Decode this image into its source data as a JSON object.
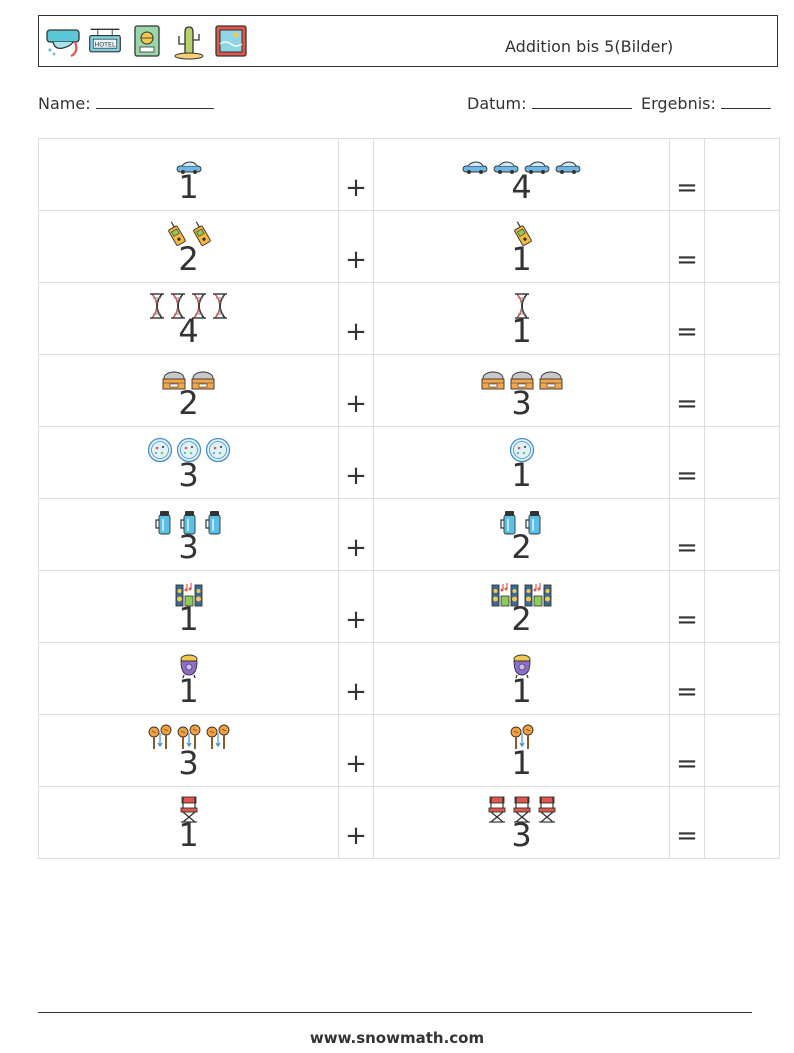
{
  "header": {
    "title": "Addition bis 5(Bilder)",
    "icons": [
      "snorkel-mask-icon",
      "hotel-sign-icon",
      "passport-icon",
      "cactus-icon",
      "postcard-icon"
    ]
  },
  "meta": {
    "name_label": "Name:",
    "datum_label": "Datum:",
    "ergebnis_label": "Ergebnis:"
  },
  "operators": {
    "plus": "+",
    "equals": "="
  },
  "rows": [
    {
      "a": 1,
      "b": 4,
      "a_icon": "car-icon",
      "b_icon": "car-icon"
    },
    {
      "a": 2,
      "b": 1,
      "a_icon": "walkie-talkie-icon",
      "b_icon": "walkie-talkie-icon"
    },
    {
      "a": 4,
      "b": 1,
      "a_icon": "dna-icon",
      "b_icon": "dna-icon"
    },
    {
      "a": 2,
      "b": 3,
      "a_icon": "basket-icon",
      "b_icon": "basket-icon"
    },
    {
      "a": 3,
      "b": 1,
      "a_icon": "petri-dish-icon",
      "b_icon": "petri-dish-icon"
    },
    {
      "a": 3,
      "b": 2,
      "a_icon": "thermos-icon",
      "b_icon": "thermos-icon"
    },
    {
      "a": 1,
      "b": 2,
      "a_icon": "speakers-icon",
      "b_icon": "speakers-icon"
    },
    {
      "a": 1,
      "b": 1,
      "a_icon": "cauldron-icon",
      "b_icon": "cauldron-icon"
    },
    {
      "a": 3,
      "b": 1,
      "a_icon": "maracas-icon",
      "b_icon": "maracas-icon"
    },
    {
      "a": 1,
      "b": 3,
      "a_icon": "director-chair-icon",
      "b_icon": "director-chair-icon"
    }
  ],
  "footer": {
    "url": "www.snowmath.com"
  }
}
